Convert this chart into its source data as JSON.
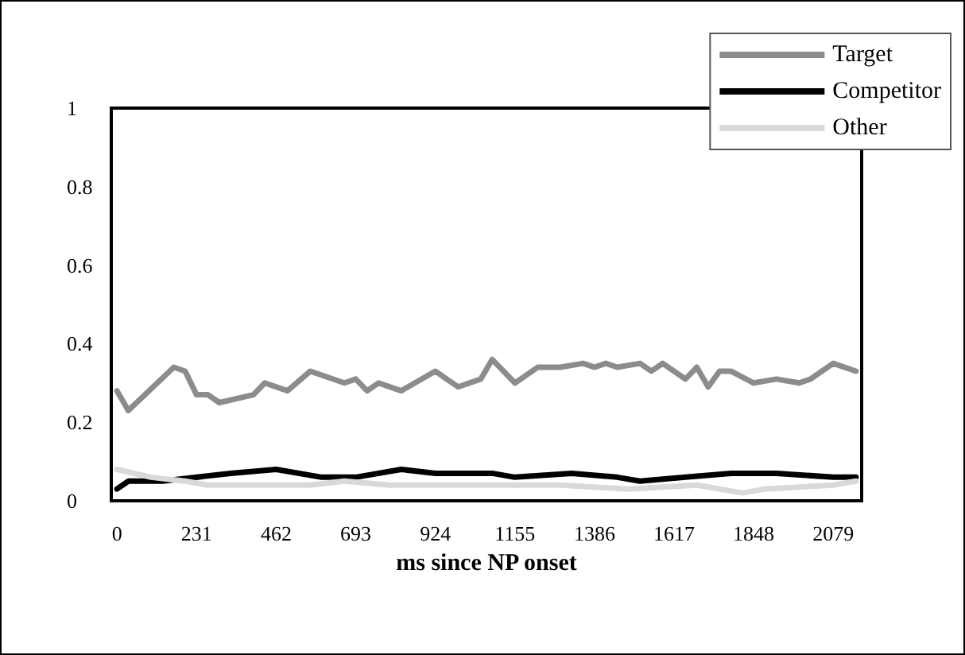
{
  "chart_data": {
    "type": "line",
    "xlabel": "ms since NP onset",
    "xlim": [
      -16.5,
      2161.5
    ],
    "xticks": [
      0,
      231,
      462,
      693,
      924,
      1155,
      1386,
      1617,
      1848,
      2079
    ],
    "ylim": [
      0,
      1
    ],
    "yticks": [
      0,
      0.2,
      0.4,
      0.6,
      0.8,
      1
    ],
    "grid": false,
    "legend": "top right",
    "marker": "none",
    "line_style": "solid",
    "series": [
      {
        "name": "Target",
        "color": "#8c8c8c",
        "x": [
          0,
          33,
          165,
          198,
          231,
          264,
          297,
          396,
          429,
          495,
          561,
          660,
          693,
          726,
          759,
          825,
          924,
          957,
          990,
          1056,
          1089,
          1155,
          1221,
          1287,
          1353,
          1386,
          1419,
          1452,
          1518,
          1551,
          1584,
          1650,
          1683,
          1716,
          1749,
          1782,
          1848,
          1914,
          1980,
          2013,
          2079,
          2145
        ],
        "values": [
          0.28,
          0.23,
          0.34,
          0.33,
          0.27,
          0.27,
          0.25,
          0.27,
          0.3,
          0.28,
          0.33,
          0.3,
          0.31,
          0.28,
          0.3,
          0.28,
          0.33,
          0.31,
          0.29,
          0.31,
          0.36,
          0.3,
          0.34,
          0.34,
          0.35,
          0.34,
          0.35,
          0.34,
          0.35,
          0.33,
          0.35,
          0.31,
          0.34,
          0.29,
          0.33,
          0.33,
          0.3,
          0.31,
          0.3,
          0.31,
          0.35,
          0.33
        ]
      },
      {
        "name": "Competitor",
        "color": "#000000",
        "x": [
          0,
          33,
          132,
          330,
          462,
          594,
          693,
          825,
          924,
          957,
          1056,
          1089,
          1155,
          1320,
          1452,
          1518,
          1650,
          1782,
          1914,
          2079,
          2145
        ],
        "values": [
          0.03,
          0.05,
          0.05,
          0.07,
          0.08,
          0.06,
          0.06,
          0.08,
          0.07,
          0.07,
          0.07,
          0.07,
          0.06,
          0.07,
          0.06,
          0.05,
          0.06,
          0.07,
          0.07,
          0.06,
          0.06
        ]
      },
      {
        "name": "Other",
        "color": "#d9d9d9",
        "x": [
          0,
          99,
          198,
          264,
          396,
          561,
          660,
          792,
          924,
          1089,
          1287,
          1485,
          1683,
          1815,
          1881,
          2079,
          2145
        ],
        "values": [
          0.08,
          0.06,
          0.05,
          0.04,
          0.04,
          0.04,
          0.05,
          0.04,
          0.04,
          0.04,
          0.04,
          0.03,
          0.04,
          0.02,
          0.03,
          0.04,
          0.05
        ]
      }
    ]
  }
}
